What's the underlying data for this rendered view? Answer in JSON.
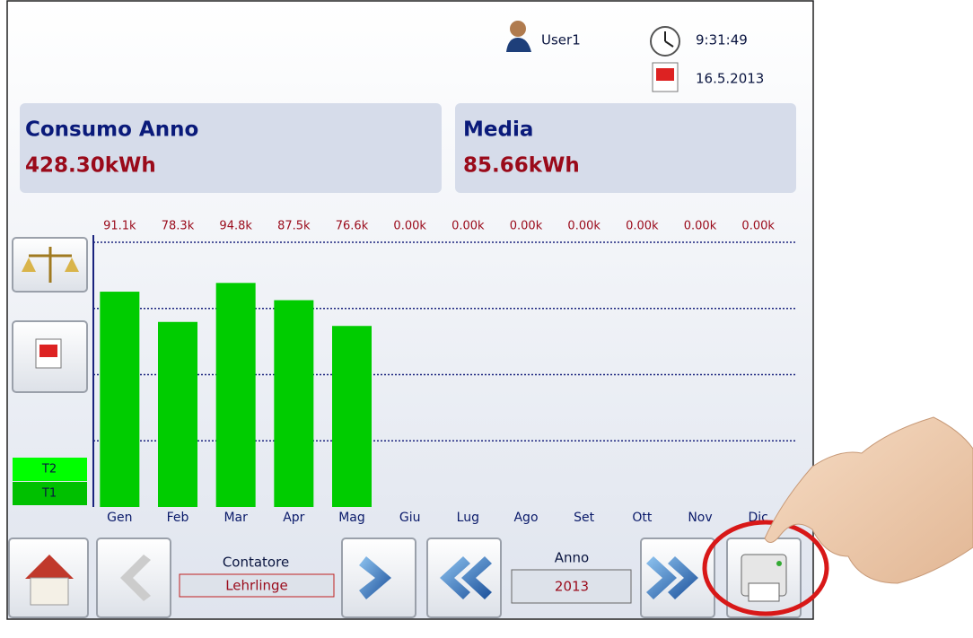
{
  "header": {
    "user": "User1",
    "time": "9:31:49",
    "date": "16.5.2013"
  },
  "cards": [
    {
      "title": "Consumo Anno",
      "value": "428.30kWh"
    },
    {
      "title": "Media",
      "value": "85.66kWh"
    }
  ],
  "tariffs": [
    "T2",
    "T1"
  ],
  "chart_data": {
    "type": "bar",
    "categories": [
      "Gen",
      "Feb",
      "Mar",
      "Apr",
      "Mag",
      "Giu",
      "Lug",
      "Ago",
      "Set",
      "Ott",
      "Nov",
      "Dic"
    ],
    "values": [
      91.1,
      78.3,
      94.8,
      87.5,
      76.6,
      0,
      0,
      0,
      0,
      0,
      0,
      0
    ],
    "value_labels": [
      "91.1k",
      "78.3k",
      "94.8k",
      "87.5k",
      "76.6k",
      "0.00k",
      "0.00k",
      "0.00k",
      "0.00k",
      "0.00k",
      "0.00k",
      "0.00k"
    ],
    "color": "#00cc00",
    "ylim": [
      0,
      112
    ],
    "yticks": [
      28,
      56,
      84,
      112
    ],
    "grid": true
  },
  "footer": {
    "counter_label": "Contatore",
    "counter_value": "Lehrlinge",
    "year_label": "Anno",
    "year_value": "2013"
  }
}
